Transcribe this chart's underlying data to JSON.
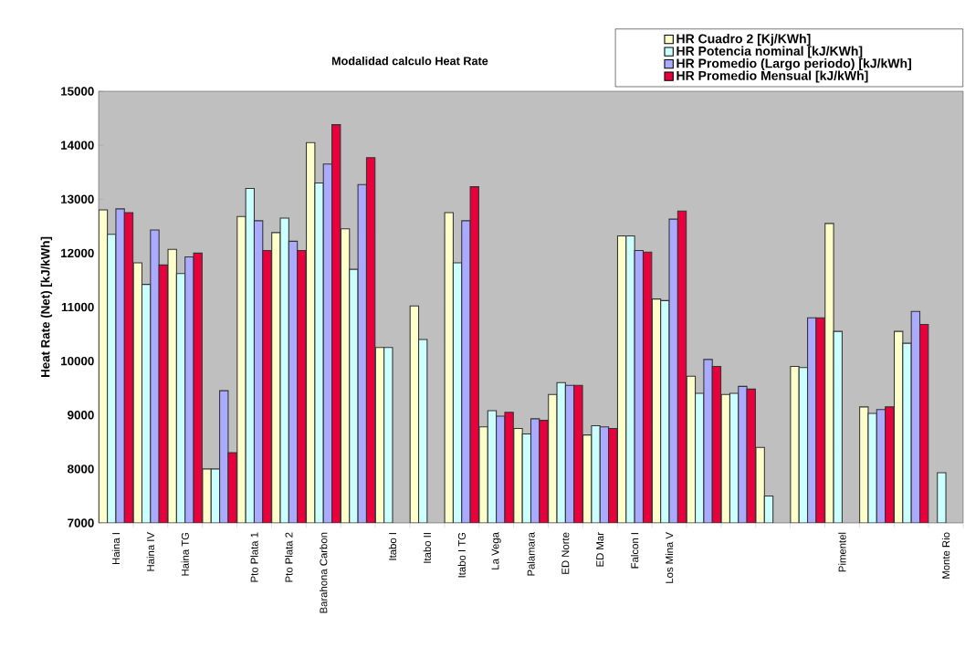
{
  "chart_data": {
    "type": "bar",
    "title": "Modalidad calculo Heat Rate",
    "ylabel": "Heat Rate (Net) [kJ/kWh]",
    "categories": [
      "Haina I",
      "Haina IV",
      "Haina TG",
      null,
      "Pto Plata 1",
      "Pto Plata 2",
      "Barahona Carbon",
      null,
      "Itabo I",
      "Itabo II",
      "Itabo I TG",
      "La Vega",
      "Palamara",
      "ED Norte",
      "ED Mar",
      "Falcon I",
      "Los Mina V",
      null,
      null,
      null,
      null,
      "Pimentel",
      null,
      null,
      "Monte Rio"
    ],
    "series": [
      {
        "name": "HR Cuadro 2 [Kj/KWh]",
        "color": "#ffffcc",
        "values": [
          12800,
          11820,
          12070,
          8000,
          12680,
          12380,
          14050,
          12450,
          10250,
          11020,
          12750,
          8780,
          8750,
          9380,
          8630,
          12320,
          11150,
          9720,
          9380,
          8400,
          9900,
          12550,
          9150,
          10550,
          null
        ]
      },
      {
        "name": "HR Potencia nominal [kJ/KWh]",
        "color": "#ccffff",
        "values": [
          12350,
          11420,
          11620,
          8000,
          13200,
          12650,
          13300,
          11700,
          10250,
          10400,
          11820,
          9080,
          8650,
          9600,
          8800,
          12320,
          11120,
          9400,
          9400,
          7500,
          9880,
          10550,
          9030,
          10330,
          7930
        ]
      },
      {
        "name": "HR Promedio (Largo periodo) [kJ/kWh]",
        "color": "#aaaaff",
        "values": [
          12820,
          12430,
          11930,
          9450,
          12600,
          12220,
          13650,
          13270,
          null,
          null,
          12600,
          8980,
          8930,
          9550,
          8780,
          12050,
          12630,
          10030,
          9530,
          null,
          10800,
          null,
          9100,
          10920,
          null
        ]
      },
      {
        "name": "HR Promedio Mensual [kJ/kWh]",
        "color": "#e8003c",
        "values": [
          12750,
          11780,
          12000,
          8300,
          12050,
          12050,
          14380,
          13770,
          null,
          null,
          13230,
          9050,
          8900,
          9550,
          8750,
          12020,
          12780,
          9900,
          9480,
          null,
          10800,
          null,
          9150,
          10680,
          null
        ]
      }
    ],
    "ylim": [
      7000,
      15000
    ],
    "yticks": [
      7000,
      8000,
      9000,
      10000,
      11000,
      12000,
      13000,
      14000,
      15000
    ],
    "legend": "top right"
  }
}
